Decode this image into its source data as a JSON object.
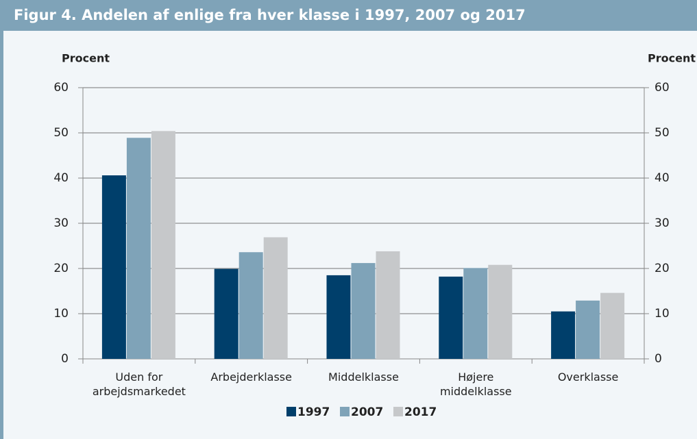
{
  "chart_data": {
    "type": "bar",
    "title": "Figur 4. Andelen af enlige fra hver klasse i 1997, 2007 og 2017",
    "y_label": "Procent",
    "y2_label": "Procent",
    "categories": [
      "Uden for arbejdsmarkedet",
      "Arbejderklasse",
      "Middelklasse",
      "Højere middelklasse",
      "Overklasse"
    ],
    "series": [
      {
        "name": "1997",
        "color": "#003f6b",
        "values": [
          40.6,
          19.9,
          18.5,
          18.2,
          10.5
        ]
      },
      {
        "name": "2007",
        "color": "#7fa3b8",
        "values": [
          48.9,
          23.6,
          21.2,
          20.1,
          12.9
        ]
      },
      {
        "name": "2017",
        "color": "#c6c8ca",
        "values": [
          50.4,
          26.9,
          23.8,
          20.8,
          14.6
        ]
      }
    ],
    "ylim": [
      0,
      60
    ],
    "yticks": [
      0,
      10,
      20,
      30,
      40,
      50,
      60
    ],
    "y2lim": [
      0,
      60
    ],
    "y2ticks": [
      0,
      10,
      20,
      30,
      40,
      50,
      60
    ],
    "grid": true,
    "legend": "bottom"
  }
}
